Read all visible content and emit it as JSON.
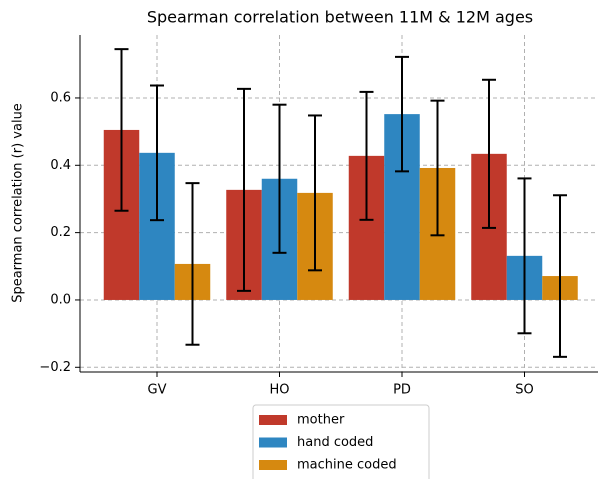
{
  "chart_data": {
    "type": "bar",
    "title": "Spearman correlation between 11M & 12M ages",
    "y_label": "Spearman correlation (r) value",
    "categories": [
      "GV",
      "HO",
      "PD",
      "SO"
    ],
    "series": [
      {
        "name": "mother",
        "color": "#c0392b",
        "values": [
          0.505,
          0.327,
          0.428,
          0.434
        ],
        "errors": [
          0.24,
          0.3,
          0.19,
          0.22
        ]
      },
      {
        "name": "hand coded",
        "color": "#2e86c1",
        "values": [
          0.437,
          0.36,
          0.552,
          0.131
        ],
        "errors": [
          0.2,
          0.22,
          0.17,
          0.23
        ]
      },
      {
        "name": "machine coded",
        "color": "#d68910",
        "values": [
          0.107,
          0.318,
          0.392,
          0.071
        ],
        "errors": [
          0.24,
          0.23,
          0.2,
          0.24
        ]
      }
    ],
    "ylim": [
      -0.214,
      0.787
    ],
    "yticks": [
      {
        "value": -0.2,
        "label": "−0.2"
      },
      {
        "value": 0,
        "label": "0.0"
      },
      0.2,
      0.4,
      0.6
    ],
    "grid": true,
    "legend": "lower center"
  }
}
